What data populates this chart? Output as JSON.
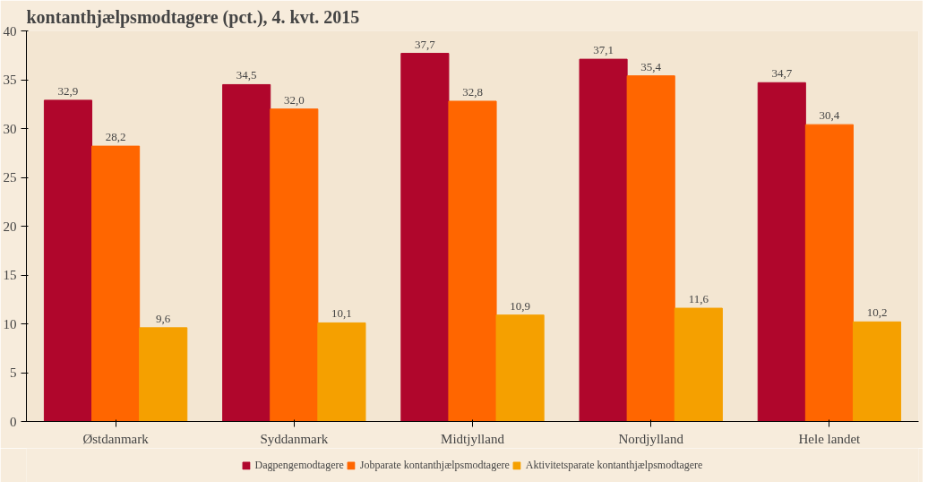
{
  "chart_data": {
    "type": "bar",
    "title": "kontanthjælpsmodtagere (pct.), 4. kvt. 2015",
    "categories": [
      "Østdanmark",
      "Syddanmark",
      "Midtjylland",
      "Nordjylland",
      "Hele landet"
    ],
    "series": [
      {
        "name": "Dagpengemodtagere",
        "color": "#b0062c",
        "values": [
          32.9,
          34.5,
          37.7,
          37.1,
          34.7
        ],
        "value_labels": [
          "32,9",
          "34,5",
          "37,7",
          "37,1",
          "34,7"
        ]
      },
      {
        "name": "Jobparate kontanthjælpsmodtagere",
        "color": "#ff6600",
        "values": [
          28.2,
          32.0,
          32.8,
          35.4,
          30.4
        ],
        "value_labels": [
          "28,2",
          "32,0",
          "32,8",
          "35,4",
          "30,4"
        ]
      },
      {
        "name": "Aktivitetsparate kontanthjælpsmodtagere",
        "color": "#f5a000",
        "values": [
          9.6,
          10.1,
          10.9,
          11.6,
          10.2
        ],
        "value_labels": [
          "9,6",
          "10,1",
          "10,9",
          "11,6",
          "10,2"
        ]
      }
    ],
    "ylim": [
      0,
      40
    ],
    "yticks": [
      0,
      5,
      10,
      15,
      20,
      25,
      30,
      35,
      40
    ],
    "legend": "bottom"
  }
}
